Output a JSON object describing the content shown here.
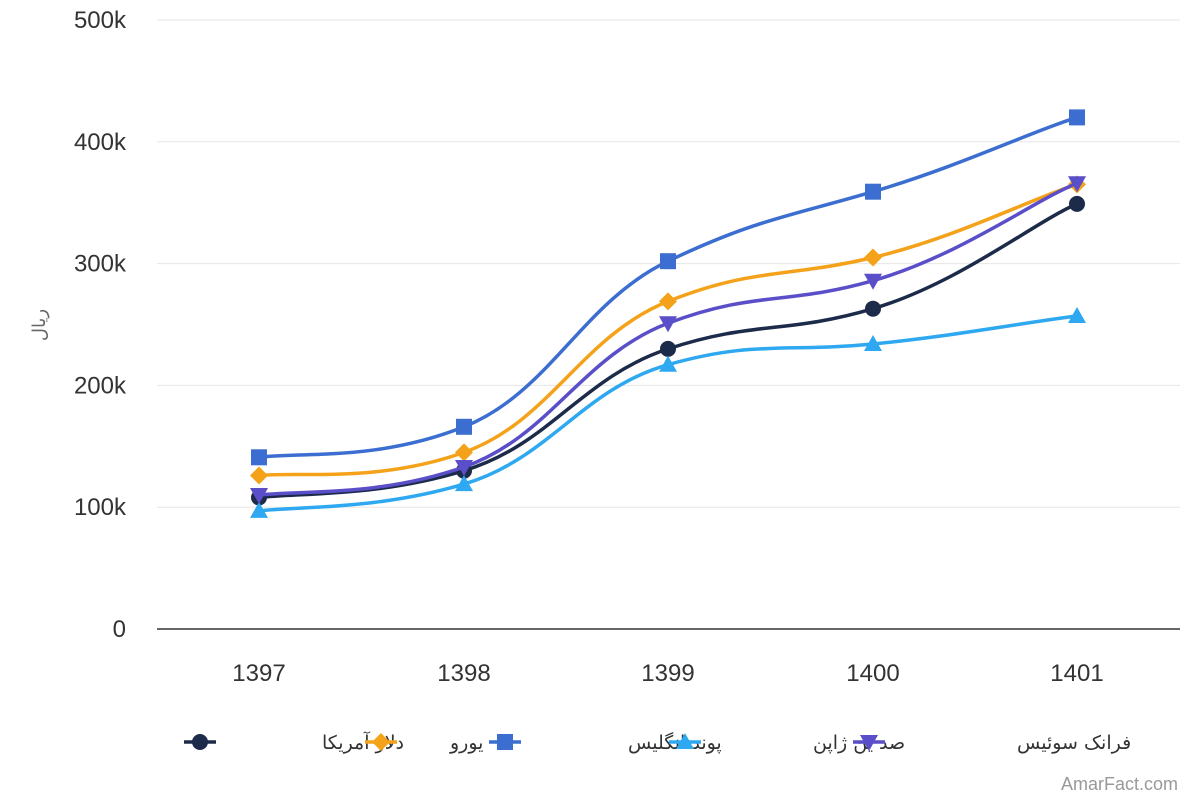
{
  "chart_data": {
    "type": "line",
    "curve": "smooth",
    "categories": [
      "1397",
      "1398",
      "1399",
      "1400",
      "1401"
    ],
    "ylabel": "ریال",
    "ylim": [
      0,
      500000
    ],
    "yticks": [
      {
        "value": 0,
        "label": "0"
      },
      {
        "value": 100000,
        "label": "100k"
      },
      {
        "value": 200000,
        "label": "200k"
      },
      {
        "value": 300000,
        "label": "300k"
      },
      {
        "value": 400000,
        "label": "400k"
      },
      {
        "value": 500000,
        "label": "500k"
      }
    ],
    "grid": true,
    "legend": "bottom",
    "series": [
      {
        "name": "دلار آمریکا",
        "color": "#1c2b4a",
        "marker": "circle",
        "values": [
          108000,
          130000,
          230000,
          263000,
          349000
        ]
      },
      {
        "name": "یورو",
        "color": "#f5a21b",
        "marker": "diamond",
        "values": [
          126000,
          145000,
          269000,
          305000,
          365000
        ]
      },
      {
        "name": "پوند انگلیس",
        "color": "#3b6ed0",
        "marker": "square",
        "values": [
          141000,
          166000,
          302000,
          359000,
          420000
        ]
      },
      {
        "name": "صد ین ژاپن",
        "color": "#2ea8f0",
        "marker": "triangle",
        "values": [
          97000,
          119000,
          217000,
          234000,
          257000
        ]
      },
      {
        "name": "فرانک سوئیس",
        "color": "#5a4fc8",
        "marker": "triangle-down",
        "values": [
          110000,
          133000,
          251000,
          286000,
          366000
        ]
      }
    ]
  },
  "credit": "AmarFact.com"
}
